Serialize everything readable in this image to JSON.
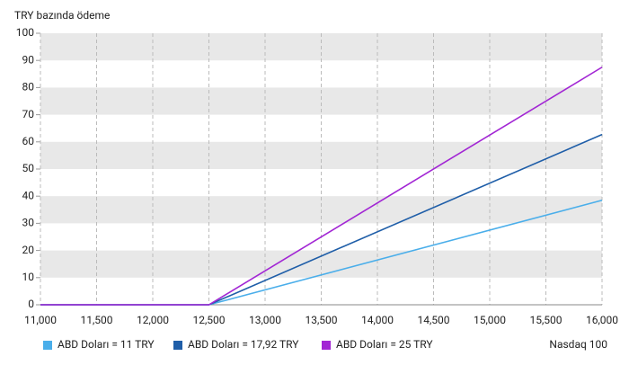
{
  "chart_data": {
    "type": "line",
    "y_label": "TRY bazında ödeme",
    "x_label": "Nasdaq 100",
    "x": [
      11000,
      12500,
      16000
    ],
    "series": [
      {
        "name": "ABD Doları = 11 TRY",
        "color": "#4aaeea",
        "values": [
          0,
          0,
          38.5
        ]
      },
      {
        "name": "ABD Doları = 17,92 TRY",
        "color": "#1f5ea8",
        "values": [
          0,
          0,
          62.7
        ]
      },
      {
        "name": "ABD Doları = 25 TRY",
        "color": "#a226d4",
        "values": [
          0,
          0,
          87.5
        ]
      }
    ],
    "xlim": [
      11000,
      16000
    ],
    "xticks": [
      {
        "value": 11000,
        "label": "11,000"
      },
      {
        "value": 11500,
        "label": "11,500"
      },
      {
        "value": 12000,
        "label": "12,000"
      },
      {
        "value": 12500,
        "label": "12,500"
      },
      {
        "value": 13000,
        "label": "13,000"
      },
      {
        "value": 13500,
        "label": "13,500"
      },
      {
        "value": 14000,
        "label": "14,000"
      },
      {
        "value": 14500,
        "label": "14,500"
      },
      {
        "value": 15000,
        "label": "15,000"
      },
      {
        "value": 15500,
        "label": "15,500"
      },
      {
        "value": 16000,
        "label": "16,000"
      }
    ],
    "ylim": [
      0,
      100
    ],
    "yticks": [
      0,
      10,
      20,
      30,
      40,
      50,
      60,
      70,
      80,
      90,
      100
    ],
    "grid": true,
    "legend": "bottom"
  }
}
